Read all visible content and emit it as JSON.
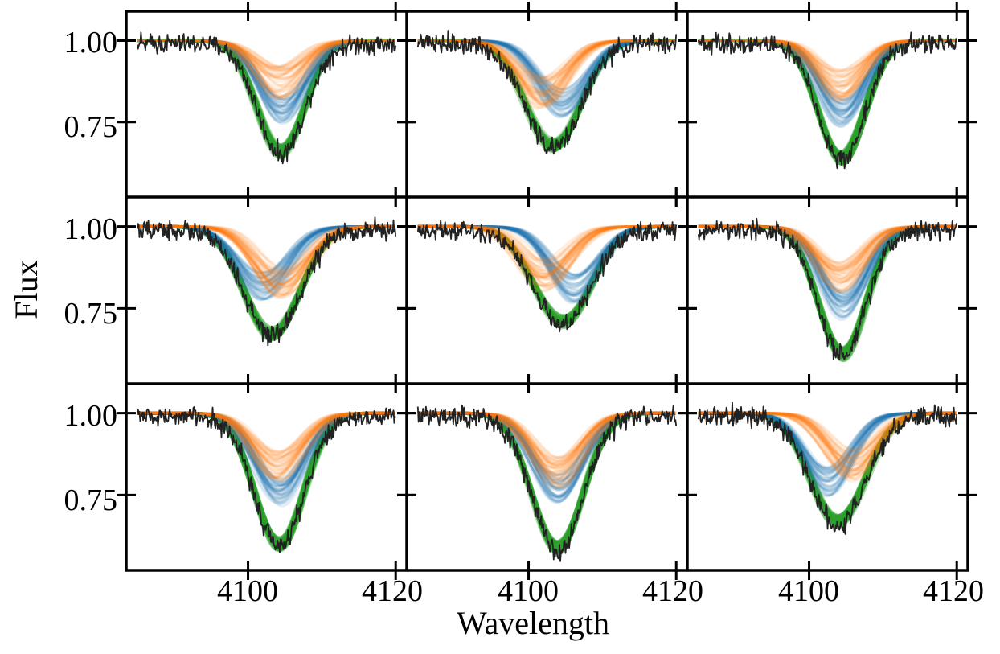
{
  "chart_data": {
    "type": "line",
    "layout": "3x3 grid of panels sharing axes",
    "xlabel": "Wavelength",
    "ylabel": "Flux",
    "xlim": [
      4083.5,
      4121.5
    ],
    "ylim": [
      0.52,
      1.09
    ],
    "xticks": [
      4100,
      4120
    ],
    "xtick_labels": [
      "4100",
      "4120"
    ],
    "yticks": [
      0.75,
      1.0
    ],
    "ytick_labels": [
      "0.75",
      "1.00"
    ],
    "grid": false,
    "legend": "none",
    "tick_direction": "inout",
    "colors": {
      "component_a": "#ff7f0e",
      "component_b": "#1f77b4",
      "combined_model": "#2ca02c",
      "observed": "#222222"
    },
    "ensemble_draws_per_component": 40,
    "panels": [
      {
        "row": 0,
        "col": 0,
        "x_start": 4085,
        "x_end": 4120,
        "a_center": 4104.3,
        "a_depth": 0.13,
        "b_center": 4104.6,
        "b_depth": 0.21,
        "sigma": 3.2,
        "min_flux": 0.575
      },
      {
        "row": 0,
        "col": 1,
        "x_start": 4085,
        "x_end": 4120,
        "a_center": 4101.8,
        "a_depth": 0.16,
        "b_center": 4104.6,
        "b_depth": 0.19,
        "sigma": 3.4,
        "min_flux": 0.645
      },
      {
        "row": 0,
        "col": 2,
        "x_start": 4085,
        "x_end": 4120,
        "a_center": 4104.2,
        "a_depth": 0.14,
        "b_center": 4104.5,
        "b_depth": 0.22,
        "sigma": 3.1,
        "min_flux": 0.57
      },
      {
        "row": 1,
        "col": 0,
        "x_start": 4085,
        "x_end": 4120,
        "a_center": 4104.6,
        "a_depth": 0.17,
        "b_center": 4102.0,
        "b_depth": 0.18,
        "sigma": 3.5,
        "min_flux": 0.65
      },
      {
        "row": 1,
        "col": 1,
        "x_start": 4085,
        "x_end": 4120,
        "a_center": 4102.4,
        "a_depth": 0.15,
        "b_center": 4106.2,
        "b_depth": 0.19,
        "sigma": 3.3,
        "min_flux": 0.675
      },
      {
        "row": 1,
        "col": 2,
        "x_start": 4085,
        "x_end": 4120,
        "a_center": 4104.3,
        "a_depth": 0.15,
        "b_center": 4104.6,
        "b_depth": 0.24,
        "sigma": 3.2,
        "min_flux": 0.585
      },
      {
        "row": 2,
        "col": 0,
        "x_start": 4085,
        "x_end": 4120,
        "a_center": 4104.1,
        "a_depth": 0.16,
        "b_center": 4104.3,
        "b_depth": 0.24,
        "sigma": 3.3,
        "min_flux": 0.58
      },
      {
        "row": 2,
        "col": 1,
        "x_start": 4085,
        "x_end": 4120,
        "a_center": 4103.8,
        "a_depth": 0.18,
        "b_center": 4104.0,
        "b_depth": 0.23,
        "sigma": 3.4,
        "min_flux": 0.575
      },
      {
        "row": 2,
        "col": 2,
        "x_start": 4085,
        "x_end": 4120,
        "a_center": 4105.8,
        "a_depth": 0.16,
        "b_center": 4102.6,
        "b_depth": 0.21,
        "sigma": 3.3,
        "min_flux": 0.61
      }
    ]
  }
}
